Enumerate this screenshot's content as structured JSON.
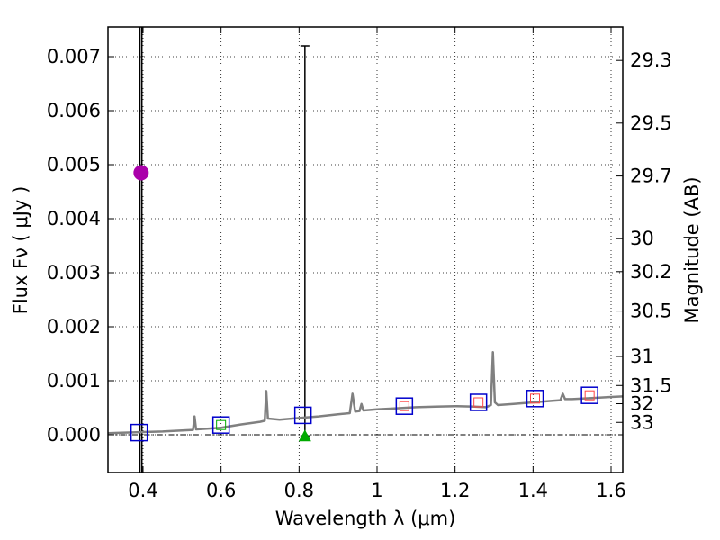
{
  "chart_data": {
    "type": "scatter",
    "xlabel": "Wavelength  λ (μm)",
    "ylabel": "Flux  Fν  ( μJy )",
    "y2label": "Magnitude (AB)",
    "xlim": [
      0.31,
      1.63
    ],
    "ylim": [
      -0.0007,
      0.00755
    ],
    "x_ticks": [
      0.4,
      0.6,
      0.8,
      1.0,
      1.2,
      1.4,
      1.6
    ],
    "x_tick_labels": [
      "0.4",
      "0.6",
      "0.8",
      "1",
      "1.2",
      "1.4",
      "1.6"
    ],
    "y_ticks": [
      0.0,
      0.001,
      0.002,
      0.003,
      0.004,
      0.005,
      0.006,
      0.007
    ],
    "y_tick_labels": [
      "0.000",
      "0.001",
      "0.002",
      "0.003",
      "0.004",
      "0.005",
      "0.006",
      "0.007"
    ],
    "mag_ticks": [
      {
        "label": "29.3",
        "flux": 0.00693
      },
      {
        "label": "29.5",
        "flux": 0.00577
      },
      {
        "label": "29.7",
        "flux": 0.00479
      },
      {
        "label": "30",
        "flux": 0.00363
      },
      {
        "label": "30.2",
        "flux": 0.00302
      },
      {
        "label": "30.5",
        "flux": 0.00229
      },
      {
        "label": "31",
        "flux": 0.00145
      },
      {
        "label": "31.5",
        "flux": 0.000912
      },
      {
        "label": "32",
        "flux": 0.000575
      },
      {
        "label": "33",
        "flux": 0.000229
      }
    ],
    "grid": true,
    "series": [
      {
        "name": "model spectrum",
        "type": "line",
        "color": "#808080",
        "x": [
          0.31,
          0.4,
          0.45,
          0.5,
          0.528,
          0.532,
          0.536,
          0.56,
          0.6,
          0.65,
          0.7,
          0.712,
          0.716,
          0.72,
          0.75,
          0.8,
          0.85,
          0.9,
          0.93,
          0.937,
          0.944,
          0.955,
          0.96,
          0.965,
          1.0,
          1.05,
          1.1,
          1.15,
          1.2,
          1.25,
          1.28,
          1.292,
          1.297,
          1.302,
          1.31,
          1.35,
          1.4,
          1.45,
          1.47,
          1.476,
          1.482,
          1.5,
          1.55,
          1.6,
          1.63
        ],
        "y": [
          3e-05,
          5e-05,
          6e-05,
          8e-05,
          9e-05,
          0.00034,
          0.0001,
          0.00011,
          0.00013,
          0.00019,
          0.00024,
          0.00026,
          0.00081,
          0.0003,
          0.00028,
          0.00031,
          0.00034,
          0.00038,
          0.0004,
          0.00076,
          0.00043,
          0.00044,
          0.00057,
          0.00045,
          0.00047,
          0.00049,
          0.00051,
          0.00052,
          0.00053,
          0.00052,
          0.00051,
          0.00055,
          0.00153,
          0.0006,
          0.00055,
          0.00057,
          0.0006,
          0.00063,
          0.00064,
          0.00076,
          0.00066,
          0.00066,
          0.00068,
          0.0007,
          0.00071
        ]
      },
      {
        "name": "photometry boxes",
        "type": "marker",
        "marker": "square",
        "color": "#0000cc",
        "x": [
          0.39,
          0.6,
          0.81,
          1.07,
          1.26,
          1.405,
          1.545
        ],
        "y": [
          4e-05,
          0.00018,
          0.00036,
          0.00053,
          0.0006,
          0.00067,
          0.00073
        ]
      },
      {
        "name": "model fluxes",
        "type": "marker",
        "marker": "small-square",
        "color": "#ff4444",
        "x": [
          1.07,
          1.26,
          1.405,
          1.545
        ],
        "y": [
          0.00053,
          0.0006,
          0.00067,
          0.00073
        ]
      },
      {
        "name": "model flux green",
        "type": "marker",
        "marker": "small-square",
        "color": "#00aa00",
        "x": [
          0.6
        ],
        "y": [
          0.00018
        ]
      },
      {
        "name": "detection",
        "type": "marker",
        "marker": "circle",
        "color": "#aa00aa",
        "x": [
          0.395
        ],
        "y": [
          0.00485
        ]
      },
      {
        "name": "upper limit",
        "type": "marker",
        "marker": "triangle",
        "color": "#00aa00",
        "x": [
          0.815
        ],
        "y": [
          -2e-05
        ]
      }
    ],
    "error_bars": [
      {
        "x": 0.392,
        "y_low": -0.0007,
        "y_high": 0.00755
      },
      {
        "x": 0.397,
        "y_low": -0.0007,
        "y_high": 0.00755
      },
      {
        "x": 0.815,
        "y_low": -2e-05,
        "y_high": 0.0072
      }
    ]
  }
}
